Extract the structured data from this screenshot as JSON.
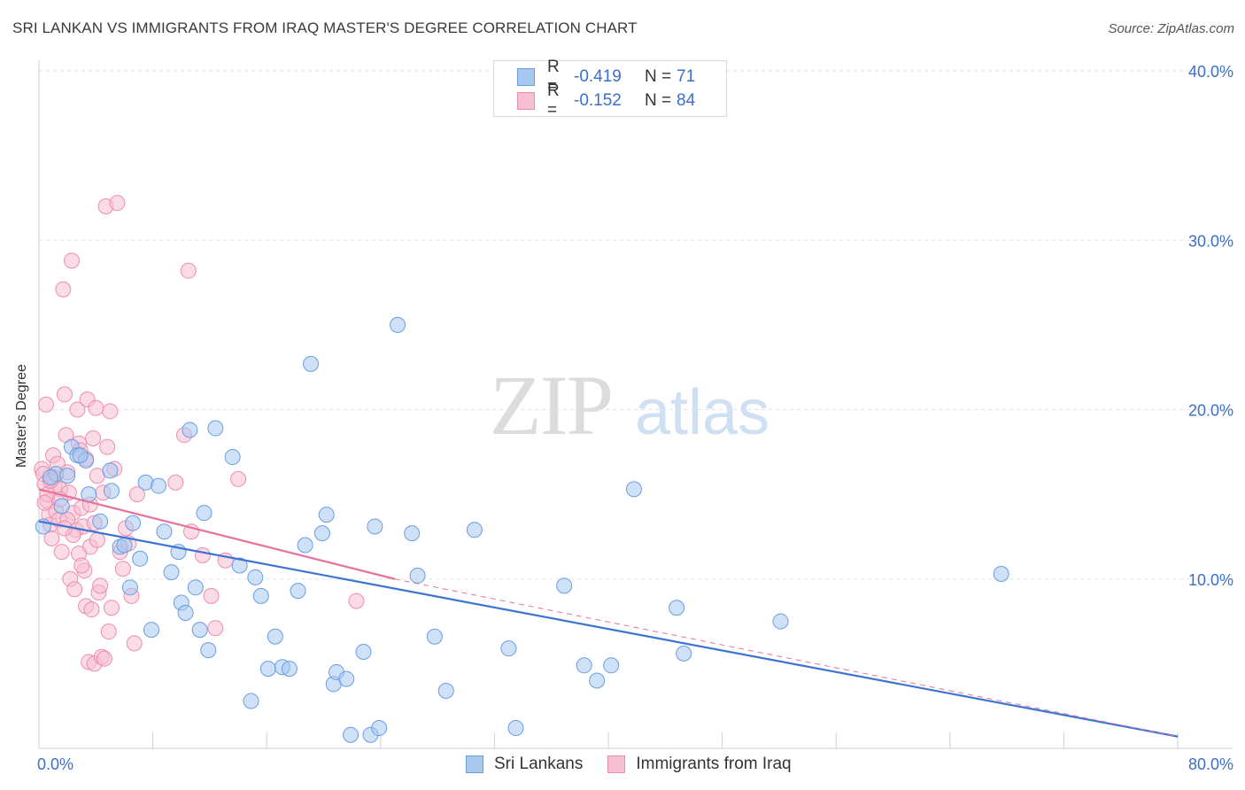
{
  "header": {
    "title": "SRI LANKAN VS IMMIGRANTS FROM IRAQ MASTER'S DEGREE CORRELATION CHART",
    "source": "Source: ZipAtlas.com"
  },
  "watermark": {
    "zip": "ZIP",
    "atlas": "atlas"
  },
  "legend": {
    "rows": [
      {
        "r_label": "R =",
        "r_value": "-0.419",
        "n_label": "N =",
        "n_value": "71",
        "color": "#a8c8f0",
        "border": "#6a9de0"
      },
      {
        "r_label": "R =",
        "r_value": "-0.152",
        "n_label": "N =",
        "n_value": "84",
        "color": "#f7bfd2",
        "border": "#ec8db0"
      }
    ],
    "bottom": [
      {
        "label": "Sri Lankans",
        "color": "#a8c8f0",
        "border": "#6a9de0"
      },
      {
        "label": "Immigrants from Iraq",
        "color": "#f7bfd2",
        "border": "#ec8db0"
      }
    ]
  },
  "chart_data": {
    "type": "scatter",
    "title": "SRI LANKAN VS IMMIGRANTS FROM IRAQ MASTER'S DEGREE CORRELATION CHART",
    "xlabel": "",
    "ylabel": "Master's Degree",
    "xlim": [
      0,
      80
    ],
    "ylim": [
      0,
      40
    ],
    "x_tick_labels": [
      "0.0%",
      "80.0%"
    ],
    "y_ticks": [
      10,
      20,
      30,
      40
    ],
    "y_tick_labels": [
      "10.0%",
      "20.0%",
      "30.0%",
      "40.0%"
    ],
    "colors": {
      "blue": "#3b74d1",
      "pink": "#e8709c",
      "grid": "#e3e3e3",
      "tick_label": "#3b6fc9"
    },
    "series": [
      {
        "name": "Sri Lankans",
        "r": -0.419,
        "n": 71,
        "trend": {
          "x": [
            0,
            80
          ],
          "y": [
            13.4,
            0.7
          ]
        },
        "points": [
          [
            0.3,
            13.1
          ],
          [
            1.2,
            16.2
          ],
          [
            2.0,
            16.1
          ],
          [
            2.3,
            17.8
          ],
          [
            2.7,
            17.3
          ],
          [
            3.3,
            17.0
          ],
          [
            3.5,
            15.0
          ],
          [
            4.3,
            13.4
          ],
          [
            5.0,
            16.4
          ],
          [
            5.1,
            15.2
          ],
          [
            5.7,
            11.9
          ],
          [
            6.0,
            12.0
          ],
          [
            6.4,
            9.5
          ],
          [
            6.6,
            13.3
          ],
          [
            7.1,
            11.2
          ],
          [
            7.5,
            15.7
          ],
          [
            7.9,
            7.0
          ],
          [
            8.4,
            15.5
          ],
          [
            8.8,
            12.8
          ],
          [
            9.3,
            10.4
          ],
          [
            9.8,
            11.6
          ],
          [
            10.0,
            8.6
          ],
          [
            10.3,
            8.0
          ],
          [
            10.6,
            18.8
          ],
          [
            11.0,
            9.5
          ],
          [
            11.3,
            7.0
          ],
          [
            11.6,
            13.9
          ],
          [
            11.9,
            5.8
          ],
          [
            12.4,
            18.9
          ],
          [
            13.6,
            17.2
          ],
          [
            14.1,
            10.8
          ],
          [
            14.9,
            2.8
          ],
          [
            15.2,
            10.1
          ],
          [
            15.6,
            9.0
          ],
          [
            16.1,
            4.7
          ],
          [
            16.6,
            6.6
          ],
          [
            17.1,
            4.8
          ],
          [
            17.6,
            4.7
          ],
          [
            18.2,
            9.3
          ],
          [
            18.7,
            12.0
          ],
          [
            19.1,
            22.7
          ],
          [
            19.9,
            12.7
          ],
          [
            20.2,
            13.8
          ],
          [
            20.7,
            3.8
          ],
          [
            20.9,
            4.5
          ],
          [
            21.6,
            4.1
          ],
          [
            21.9,
            0.8
          ],
          [
            22.8,
            5.7
          ],
          [
            23.3,
            0.8
          ],
          [
            23.6,
            13.1
          ],
          [
            23.9,
            1.2
          ],
          [
            25.2,
            25.0
          ],
          [
            26.2,
            12.7
          ],
          [
            26.6,
            10.2
          ],
          [
            27.8,
            6.6
          ],
          [
            28.6,
            3.4
          ],
          [
            30.6,
            12.9
          ],
          [
            33.0,
            5.9
          ],
          [
            33.5,
            1.2
          ],
          [
            36.9,
            9.6
          ],
          [
            38.3,
            4.9
          ],
          [
            39.2,
            4.0
          ],
          [
            40.2,
            4.9
          ],
          [
            41.8,
            15.3
          ],
          [
            44.8,
            8.3
          ],
          [
            45.3,
            5.6
          ],
          [
            52.1,
            7.5
          ],
          [
            67.6,
            10.3
          ],
          [
            0.8,
            16.0
          ],
          [
            1.6,
            14.3
          ],
          [
            2.9,
            17.3
          ]
        ]
      },
      {
        "name": "Immigrants from Iraq",
        "r": -0.152,
        "n": 84,
        "trend": {
          "x": [
            0,
            25
          ],
          "y": [
            15.3,
            10.0
          ]
        },
        "trend_ext": {
          "x": [
            25,
            80
          ],
          "y": [
            10.0,
            0.7
          ]
        },
        "points": [
          [
            0.2,
            16.5
          ],
          [
            0.3,
            16.2
          ],
          [
            0.4,
            15.6
          ],
          [
            0.5,
            20.3
          ],
          [
            0.6,
            14.6
          ],
          [
            0.7,
            13.8
          ],
          [
            0.8,
            13.2
          ],
          [
            0.9,
            15.9
          ],
          [
            1.0,
            17.3
          ],
          [
            1.1,
            15.5
          ],
          [
            1.2,
            14.0
          ],
          [
            1.3,
            16.8
          ],
          [
            1.4,
            13.5
          ],
          [
            1.5,
            15.3
          ],
          [
            1.6,
            11.6
          ],
          [
            1.7,
            27.1
          ],
          [
            1.8,
            20.9
          ],
          [
            1.9,
            18.5
          ],
          [
            2.0,
            16.3
          ],
          [
            2.1,
            15.1
          ],
          [
            2.2,
            10.0
          ],
          [
            2.3,
            28.8
          ],
          [
            2.4,
            13.9
          ],
          [
            2.5,
            9.4
          ],
          [
            2.6,
            12.9
          ],
          [
            2.7,
            20.0
          ],
          [
            2.8,
            18.0
          ],
          [
            2.9,
            17.6
          ],
          [
            3.0,
            14.2
          ],
          [
            3.1,
            13.1
          ],
          [
            3.2,
            10.5
          ],
          [
            3.3,
            8.4
          ],
          [
            3.4,
            20.6
          ],
          [
            3.5,
            5.1
          ],
          [
            3.6,
            11.9
          ],
          [
            3.7,
            8.2
          ],
          [
            3.8,
            18.3
          ],
          [
            3.9,
            5.0
          ],
          [
            4.0,
            20.1
          ],
          [
            4.1,
            12.3
          ],
          [
            4.2,
            9.2
          ],
          [
            4.3,
            9.6
          ],
          [
            4.4,
            5.4
          ],
          [
            4.5,
            15.1
          ],
          [
            4.6,
            5.3
          ],
          [
            4.7,
            32.0
          ],
          [
            4.8,
            17.8
          ],
          [
            4.9,
            6.9
          ],
          [
            5.0,
            19.9
          ],
          [
            5.1,
            8.3
          ],
          [
            5.3,
            16.5
          ],
          [
            5.5,
            32.2
          ],
          [
            5.7,
            11.6
          ],
          [
            5.9,
            10.6
          ],
          [
            6.1,
            13.0
          ],
          [
            6.3,
            12.1
          ],
          [
            6.5,
            9.0
          ],
          [
            6.7,
            6.2
          ],
          [
            6.9,
            15.0
          ],
          [
            9.6,
            15.7
          ],
          [
            10.2,
            18.5
          ],
          [
            10.5,
            28.2
          ],
          [
            10.7,
            12.8
          ],
          [
            11.5,
            11.4
          ],
          [
            12.1,
            9.0
          ],
          [
            12.4,
            7.1
          ],
          [
            13.1,
            11.1
          ],
          [
            14.0,
            15.9
          ],
          [
            22.3,
            8.7
          ],
          [
            0.6,
            15.0
          ],
          [
            0.9,
            12.4
          ],
          [
            1.5,
            14.7
          ],
          [
            2.0,
            13.5
          ],
          [
            2.4,
            12.6
          ],
          [
            2.8,
            11.5
          ],
          [
            3.0,
            10.8
          ],
          [
            3.3,
            17.1
          ],
          [
            3.6,
            14.4
          ],
          [
            3.9,
            13.3
          ],
          [
            4.1,
            16.1
          ],
          [
            1.0,
            16.0
          ],
          [
            1.8,
            13.0
          ],
          [
            0.4,
            14.5
          ],
          [
            0.8,
            15.8
          ]
        ]
      }
    ]
  }
}
